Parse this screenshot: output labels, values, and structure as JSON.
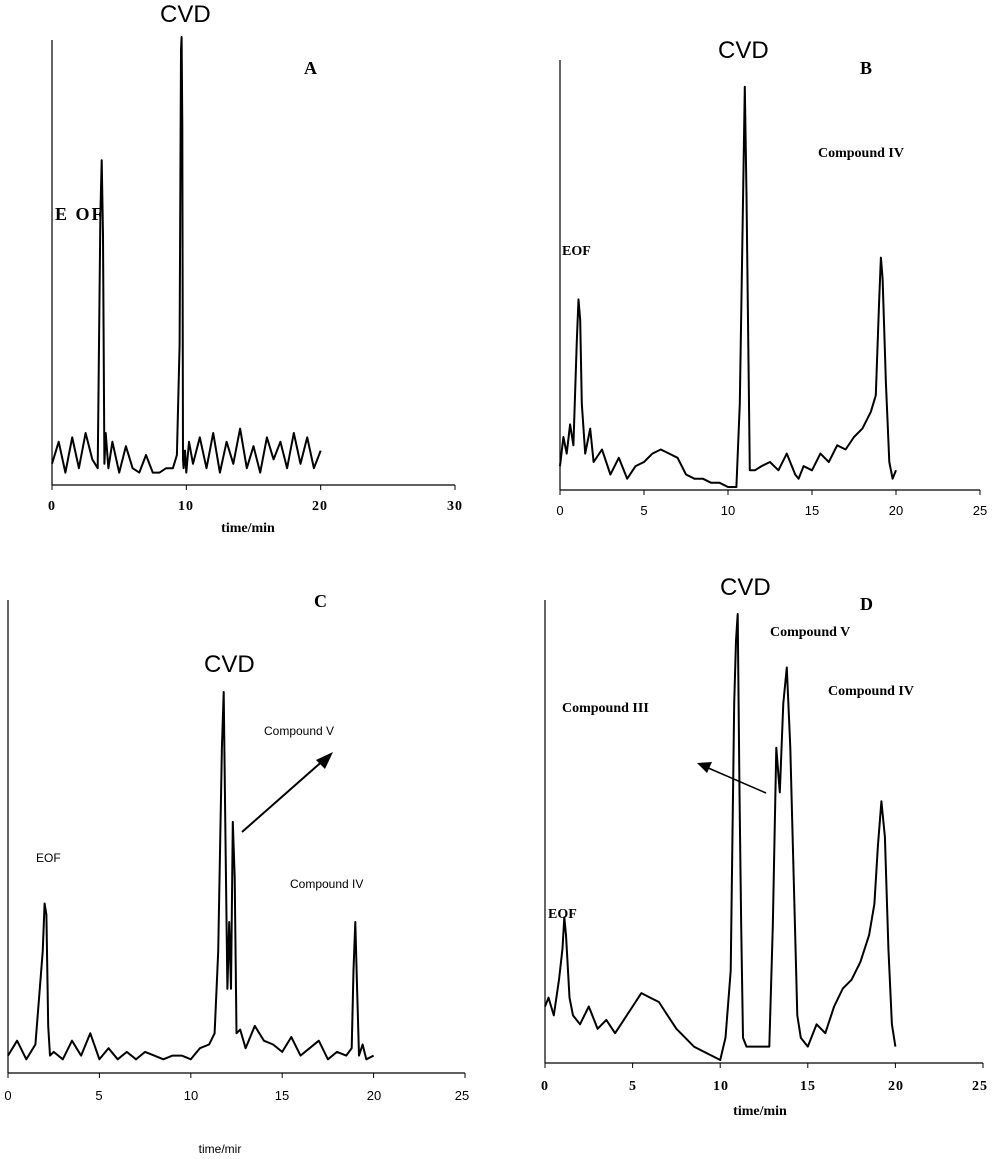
{
  "chart_data": [
    {
      "panel": "A",
      "type": "line",
      "xlabel": "time/min",
      "xlim": [
        0,
        30
      ],
      "xticks": [
        "0",
        "10",
        "20",
        "30"
      ],
      "series": [
        {
          "x": [
            0,
            0.5,
            1,
            1.5,
            2,
            2.5,
            3,
            3.4,
            3.6,
            3.7,
            3.8,
            3.9,
            4.0,
            4.2,
            4.5,
            5,
            5.5,
            6,
            6.5,
            7,
            7.5,
            8,
            8.5,
            9,
            9.3,
            9.5,
            9.6,
            9.65,
            9.7,
            9.75,
            9.8,
            9.9,
            10,
            10.2,
            10.5,
            11,
            11.5,
            12,
            12.5,
            13,
            13.5,
            14,
            14.5,
            15,
            15.5,
            16,
            16.5,
            17,
            17.5,
            18,
            18.5,
            19,
            19.5,
            20
          ],
          "y": [
            3,
            8,
            1,
            9,
            2,
            10,
            4,
            2,
            60,
            72,
            55,
            3,
            10,
            2,
            8,
            1,
            7,
            2,
            1,
            5,
            1,
            1,
            2,
            2,
            5,
            30,
            97,
            100,
            80,
            4,
            2,
            6,
            1,
            8,
            3,
            9,
            2,
            10,
            1,
            8,
            3,
            11,
            2,
            7,
            1,
            9,
            4,
            8,
            2,
            10,
            3,
            9,
            2,
            6
          ]
        }
      ],
      "annotations": [
        "EOF",
        "CVD",
        "A"
      ]
    },
    {
      "panel": "B",
      "type": "line",
      "xlabel": "",
      "xlim": [
        0,
        25
      ],
      "xticks": [
        "0",
        "5",
        "10",
        "15",
        "20",
        "25"
      ],
      "series": [
        {
          "x": [
            0,
            0.2,
            0.4,
            0.6,
            0.8,
            1.0,
            1.1,
            1.2,
            1.3,
            1.5,
            1.8,
            2,
            2.5,
            3,
            3.5,
            4,
            4.5,
            5,
            5.5,
            6,
            6.5,
            7,
            7.5,
            8,
            8.5,
            9,
            9.5,
            10,
            10.5,
            10.7,
            10.9,
            11.0,
            11.1,
            11.3,
            11.6,
            12,
            12.5,
            13,
            13.5,
            14,
            14.2,
            14.5,
            15,
            15.5,
            16,
            16.5,
            17,
            17.5,
            18,
            18.5,
            18.8,
            19.0,
            19.1,
            19.2,
            19.4,
            19.6,
            19.8,
            20
          ],
          "y": [
            5,
            12,
            8,
            15,
            10,
            35,
            45,
            40,
            20,
            8,
            14,
            6,
            9,
            3,
            7,
            2,
            5,
            6,
            8,
            9,
            8,
            7,
            3,
            2,
            2,
            1,
            1,
            0,
            0,
            20,
            70,
            96,
            70,
            4,
            4,
            5,
            6,
            4,
            8,
            3,
            2,
            5,
            4,
            8,
            6,
            10,
            9,
            12,
            14,
            18,
            22,
            45,
            55,
            50,
            25,
            6,
            2,
            4
          ]
        }
      ],
      "annotations": [
        "EOF",
        "CVD",
        "B",
        "Compound IV"
      ]
    },
    {
      "panel": "C",
      "type": "line",
      "xlabel": "time/mir",
      "xlim": [
        0,
        25
      ],
      "xticks": [
        "0",
        "5",
        "10",
        "15",
        "20",
        "25"
      ],
      "series": [
        {
          "x": [
            0,
            0.5,
            1,
            1.5,
            1.9,
            2.0,
            2.1,
            2.2,
            2.3,
            2.5,
            3,
            3.5,
            4,
            4.5,
            5,
            5.5,
            6,
            6.5,
            7,
            7.5,
            8,
            8.5,
            9,
            9.5,
            10,
            10.5,
            11,
            11.3,
            11.5,
            11.7,
            11.8,
            11.9,
            12.0,
            12.1,
            12.2,
            12.3,
            12.4,
            12.5,
            12.7,
            13,
            13.5,
            14,
            14.5,
            15,
            15.5,
            16,
            16.5,
            17,
            17.5,
            18,
            18.5,
            18.8,
            18.9,
            19.0,
            19.1,
            19.2,
            19.4,
            19.6,
            20
          ],
          "y": [
            2,
            6,
            1,
            5,
            30,
            43,
            40,
            10,
            2,
            3,
            1,
            6,
            2,
            8,
            1,
            4,
            1,
            3,
            1,
            3,
            2,
            1,
            2,
            2,
            1,
            4,
            5,
            8,
            30,
            85,
            100,
            60,
            20,
            38,
            20,
            65,
            50,
            8,
            9,
            4,
            10,
            6,
            5,
            3,
            7,
            2,
            4,
            6,
            1,
            3,
            2,
            4,
            25,
            38,
            20,
            2,
            5,
            1,
            2
          ]
        }
      ],
      "annotations": [
        "EOF",
        "CVD",
        "C",
        "Compound V",
        "Compound IV"
      ]
    },
    {
      "panel": "D",
      "type": "line",
      "xlabel": "time/min",
      "xlim": [
        0,
        25
      ],
      "xticks": [
        "0",
        "5",
        "10",
        "15",
        "20",
        "25"
      ],
      "series": [
        {
          "x": [
            0,
            0.2,
            0.5,
            0.8,
            1.0,
            1.1,
            1.2,
            1.4,
            1.6,
            2,
            2.5,
            3,
            3.5,
            4,
            4.5,
            5,
            5.5,
            6,
            6.5,
            7,
            7.5,
            8,
            8.5,
            9,
            9.5,
            10,
            10.3,
            10.6,
            10.8,
            10.9,
            11.0,
            11.1,
            11.2,
            11.3,
            11.5,
            12,
            12.5,
            12.8,
            13.0,
            13.2,
            13.4,
            13.6,
            13.8,
            14.0,
            14.2,
            14.4,
            14.6,
            15,
            15.5,
            16,
            16.5,
            17,
            17.5,
            18,
            18.5,
            18.8,
            19.0,
            19.2,
            19.4,
            19.6,
            19.8,
            20
          ],
          "y": [
            12,
            14,
            10,
            18,
            25,
            32,
            28,
            14,
            10,
            8,
            12,
            7,
            9,
            6,
            9,
            12,
            15,
            14,
            13,
            10,
            7,
            5,
            3,
            2,
            1,
            0,
            5,
            20,
            80,
            94,
            100,
            60,
            30,
            5,
            3,
            3,
            3,
            3,
            30,
            70,
            60,
            80,
            88,
            70,
            40,
            10,
            5,
            3,
            8,
            6,
            12,
            16,
            18,
            22,
            28,
            35,
            48,
            58,
            50,
            25,
            8,
            3
          ]
        }
      ],
      "annotations": [
        "EOF",
        "CVD",
        "D",
        "Compound V",
        "Compound IV",
        "Compound III"
      ]
    }
  ],
  "labels": {
    "A": {
      "panel": "A",
      "eof": "E OF",
      "cvd": "CVD",
      "xlabel": "time/min",
      "xticks": [
        "0",
        "10",
        "20",
        "30"
      ]
    },
    "B": {
      "panel": "B",
      "eof": "EOF",
      "cvd": "CVD",
      "c4": "Compound IV",
      "xticks": [
        "0",
        "5",
        "10",
        "15",
        "20",
        "25"
      ]
    },
    "C": {
      "panel": "C",
      "eof": "EOF",
      "cvd": "CVD",
      "c5": "Compound V",
      "c4": "Compound IV",
      "xlabel": "time/mir",
      "xticks": [
        "0",
        "5",
        "10",
        "15",
        "20",
        "25"
      ]
    },
    "D": {
      "panel": "D",
      "eof": "EOF",
      "cvd": "CVD",
      "c5": "Compound V",
      "c4": "Compound IV",
      "c3": "Compound III",
      "xlabel": "time/min",
      "xticks": [
        "0",
        "5",
        "10",
        "15",
        "20",
        "25"
      ]
    }
  }
}
